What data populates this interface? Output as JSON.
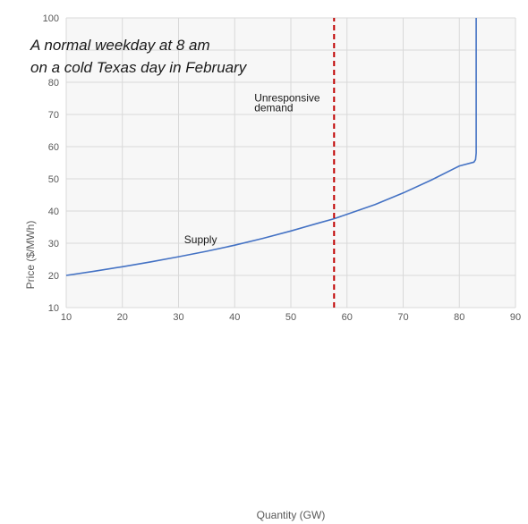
{
  "chart_data": {
    "type": "line",
    "title_lines": [
      "A normal weekday at 8 am",
      "on a cold Texas day in February"
    ],
    "xlabel": "Quantity (GW)",
    "ylabel": "Price ($/MWh)",
    "xlim": [
      10,
      90
    ],
    "ylim": [
      10,
      100
    ],
    "xticks": [
      10,
      20,
      30,
      40,
      50,
      60,
      70,
      80,
      90
    ],
    "yticks": [
      10,
      20,
      30,
      40,
      50,
      60,
      70,
      80,
      90,
      100
    ],
    "ytick_labels": [
      "10",
      "20",
      "30",
      "40",
      "50",
      "60",
      "70",
      "80",
      "",
      "100"
    ],
    "grid": true,
    "series": [
      {
        "name": "Supply",
        "color": "#4472c4",
        "style": "solid",
        "x": [
          10,
          15,
          20,
          25,
          30,
          35,
          40,
          45,
          50,
          55,
          57.7,
          60,
          65,
          70,
          75,
          80,
          82.6,
          82.9,
          83,
          83,
          83
        ],
        "y": [
          20,
          21.3,
          22.7,
          24.2,
          25.8,
          27.5,
          29.4,
          31.5,
          33.8,
          36.3,
          37.6,
          39,
          42,
          45.6,
          49.6,
          54,
          55.2,
          56,
          58,
          80,
          100
        ]
      },
      {
        "name": "Unresponsive demand",
        "color": "#c00000",
        "style": "dashed",
        "x": [
          57.7,
          57.7
        ],
        "y": [
          10,
          100
        ]
      }
    ],
    "annotations": [
      {
        "text": "Supply",
        "x": 31,
        "y": 30
      },
      {
        "text": "Unresponsive",
        "x": 43.5,
        "y": 74
      },
      {
        "text": "demand",
        "x": 43.5,
        "y": 71
      }
    ]
  }
}
